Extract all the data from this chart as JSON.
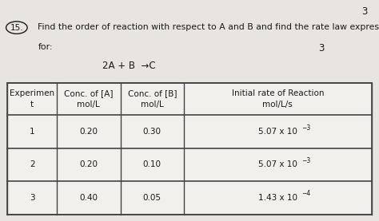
{
  "question_num": "15.",
  "title_line1": "Find the order of reaction with respect to A and B and find the rate law expression",
  "title_line2": "for:",
  "top_right_num": "3",
  "eq_num": "3",
  "equation": "2A + B  →C",
  "col_headers_line1": [
    "Experimen",
    "Conc. of [A]",
    "Conc. of [B]",
    "Initial rate of Reaction"
  ],
  "col_headers_line2": [
    "t",
    "mol/L",
    "mol/L",
    "mol/L/s"
  ],
  "rows": [
    [
      "1",
      "0.20",
      "0.30",
      "5.07 x 10"
    ],
    [
      "2",
      "0.20",
      "0.10",
      "5.07 x 10"
    ],
    [
      "3",
      "0.40",
      "0.05",
      "1.43 x 10"
    ]
  ],
  "row_superscripts": [
    "−3",
    "−3",
    "−4"
  ],
  "bg_color": "#e8e4e0",
  "table_bg": "#f2f0ed",
  "border_color": "#444444",
  "text_color": "#1a1a1a",
  "title_fontsize": 7.8,
  "table_fontsize": 7.5
}
